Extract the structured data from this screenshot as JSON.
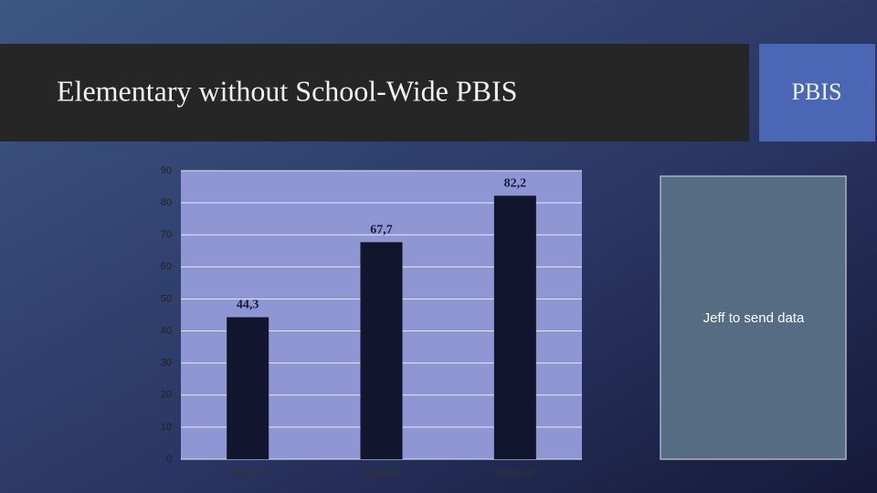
{
  "slide": {
    "title": "Elementary without School-Wide PBIS",
    "side_label": "PBIS",
    "note": "Jeff to send data"
  },
  "chart_data": {
    "type": "bar",
    "categories": [
      "2003-04",
      "2004-05",
      "2005-06"
    ],
    "values": [
      44.3,
      67.7,
      82.2
    ],
    "value_labels": [
      "44,3",
      "67,7",
      "82,2"
    ],
    "color": "#12152e",
    "ylim": [
      0,
      90
    ],
    "yticks": [
      0,
      10,
      20,
      30,
      40,
      50,
      60,
      70,
      80,
      90
    ],
    "grid": true
  }
}
